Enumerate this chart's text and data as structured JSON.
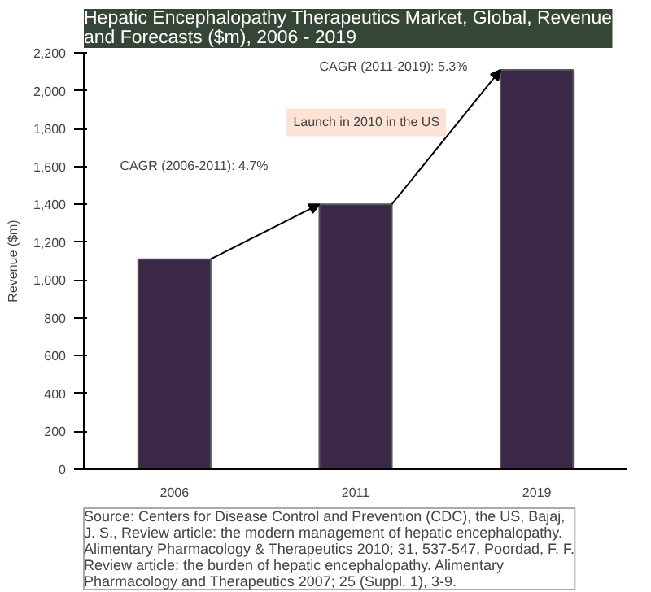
{
  "chart_data": {
    "type": "bar",
    "title": "Hepatic Encephalopathy Therapeutics Market, Global, Revenue and Forecasts ($m), 2006 - 2019",
    "categories": [
      "2006",
      "2011",
      "2019"
    ],
    "values": [
      1110,
      1400,
      2110
    ],
    "color": "#3b2846",
    "ylabel": "Revenue ($m)",
    "ylim": [
      0,
      2200
    ],
    "yticks": [
      {
        "value": 0,
        "label": "0"
      },
      {
        "value": 200,
        "label": "200"
      },
      {
        "value": 400,
        "label": "400"
      },
      {
        "value": 600,
        "label": "600"
      },
      {
        "value": 800,
        "label": "800"
      },
      {
        "value": 1000,
        "label": "1,000"
      },
      {
        "value": 1200,
        "label": "1,200"
      },
      {
        "value": 1400,
        "label": "1,400"
      },
      {
        "value": 1600,
        "label": "1,600"
      },
      {
        "value": 1800,
        "label": "1,800"
      },
      {
        "value": 2000,
        "label": "2,000"
      },
      {
        "value": 2200,
        "label": "2,200"
      }
    ],
    "grid": false,
    "annotations": [
      "CAGR (2006-2011): 4.7%",
      "CAGR (2011-2019): 5.3%",
      "Launch in 2010 in the US",
      "Source: Centers for Disease Control and Prevention (CDC), the US, Bajaj, J. S., Review article: the modern management of hepatic encephalopathy. Alimentary Pharmacology & Therapeutics 2010; 31, 537-547, Poordad, F. F. Review article: the burden of hepatic encephalopathy. Alimentary Pharmacology and Therapeutics 2007; 25 (Suppl. 1), 3-9."
    ]
  }
}
